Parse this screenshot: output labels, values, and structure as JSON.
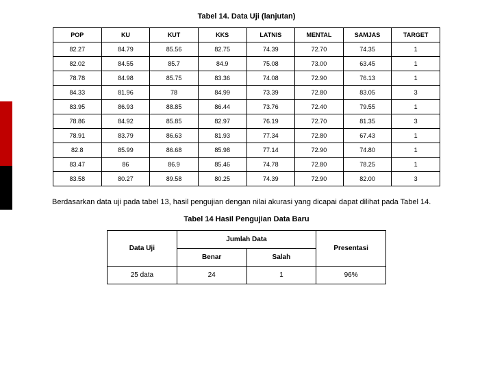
{
  "title1": "Tabel 14. Data Uji (lanjutan)",
  "table1": {
    "columns": [
      "POP",
      "KU",
      "KUT",
      "KKS",
      "LATNIS",
      "MENTAL",
      "SAMJAS",
      "TARGET"
    ],
    "rows": [
      [
        "82.27",
        "84.79",
        "85.56",
        "82.75",
        "74.39",
        "72.70",
        "74.35",
        "1"
      ],
      [
        "82.02",
        "84.55",
        "85.7",
        "84.9",
        "75.08",
        "73.00",
        "63.45",
        "1"
      ],
      [
        "78.78",
        "84.98",
        "85.75",
        "83.36",
        "74.08",
        "72.90",
        "76.13",
        "1"
      ],
      [
        "84.33",
        "81.96",
        "78",
        "84.99",
        "73.39",
        "72.80",
        "83.05",
        "3"
      ],
      [
        "83.95",
        "86.93",
        "88.85",
        "86.44",
        "73.76",
        "72.40",
        "79.55",
        "1"
      ],
      [
        "78.86",
        "84.92",
        "85.85",
        "82.97",
        "76.19",
        "72.70",
        "81.35",
        "3"
      ],
      [
        "78.91",
        "83.79",
        "86.63",
        "81.93",
        "77.34",
        "72.80",
        "67.43",
        "1"
      ],
      [
        "82.8",
        "85.99",
        "86.68",
        "85.98",
        "77.14",
        "72.90",
        "74.80",
        "1"
      ],
      [
        "83.47",
        "86",
        "86.9",
        "85.46",
        "74.78",
        "72.80",
        "78.25",
        "1"
      ],
      [
        "83.58",
        "80.27",
        "89.58",
        "80.25",
        "74.39",
        "72.90",
        "82.00",
        "3"
      ]
    ]
  },
  "paragraph": "Berdasarkan data uji pada tabel 13, hasil pengujian dengan nilai akurasi yang dicapai dapat dilihat pada Tabel 14.",
  "title2": "Tabel 14 Hasil Pengujian Data Baru",
  "table2": {
    "h_data_uji": "Data Uji",
    "h_jumlah": "Jumlah Data",
    "h_presentasi": "Presentasi",
    "h_benar": "Benar",
    "h_salah": "Salah",
    "row": [
      "25 data",
      "24",
      "1",
      "96%"
    ]
  }
}
